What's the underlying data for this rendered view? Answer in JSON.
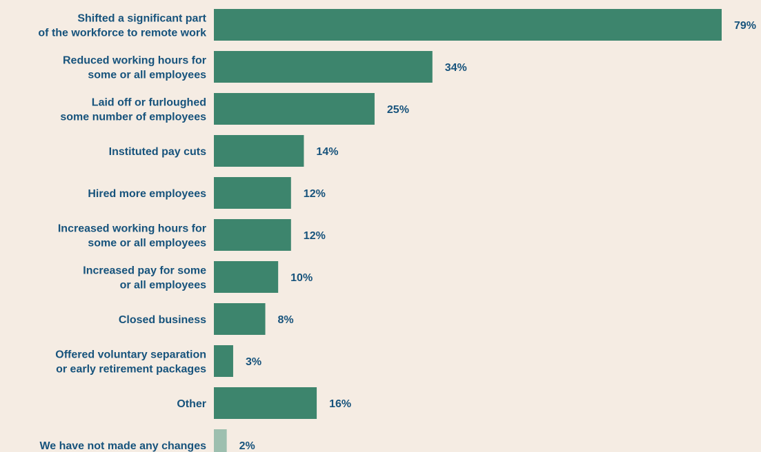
{
  "chart_data": {
    "type": "bar",
    "orientation": "horizontal",
    "categories": [
      [
        "Shifted a significant part",
        "of the workforce to remote work"
      ],
      [
        "Reduced working hours for",
        "some or all employees"
      ],
      [
        "Laid off or furloughed",
        "some number of employees"
      ],
      [
        "Instituted pay cuts"
      ],
      [
        "Hired more employees"
      ],
      [
        "Increased working hours for",
        "some or all employees"
      ],
      [
        "Increased pay for some",
        "or all employees"
      ],
      [
        "Closed business"
      ],
      [
        "Offered voluntary separation",
        "or early retirement packages"
      ],
      [
        "Other"
      ],
      [
        "We have not made any changes"
      ]
    ],
    "values": [
      79,
      34,
      25,
      14,
      12,
      12,
      10,
      8,
      3,
      16,
      2
    ],
    "value_labels": [
      "79%",
      "34%",
      "25%",
      "14%",
      "12%",
      "12%",
      "10%",
      "8%",
      "3%",
      "16%",
      "2%"
    ],
    "bar_colors": [
      "#3d856d",
      "#3d856d",
      "#3d856d",
      "#3d856d",
      "#3d856d",
      "#3d856d",
      "#3d856d",
      "#3d856d",
      "#3d856d",
      "#3d856d",
      "#9dbfaf"
    ],
    "label_color": "#17537c",
    "background": "#f5ece3",
    "xlim": [
      0,
      79
    ],
    "grid": false,
    "title": "",
    "xlabel": "",
    "ylabel": ""
  }
}
